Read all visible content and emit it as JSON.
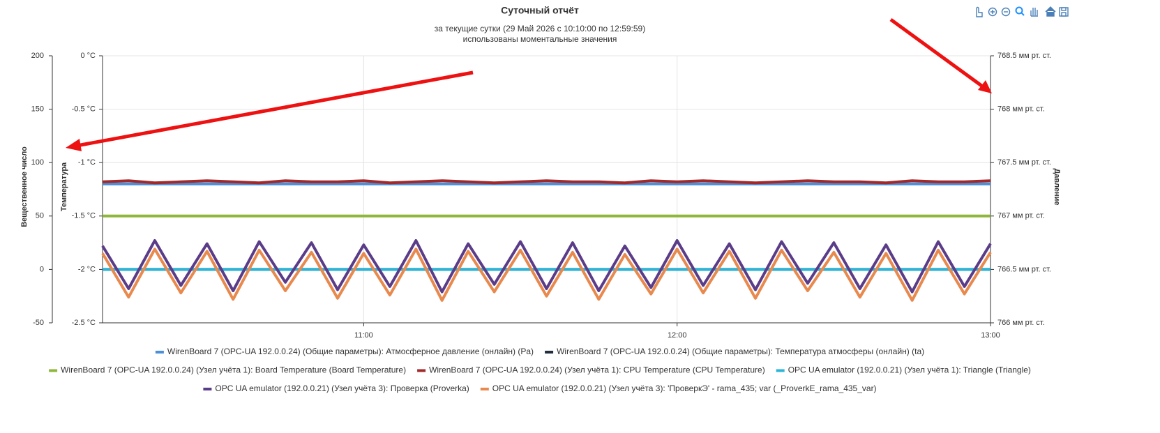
{
  "chart_data": {
    "type": "line",
    "title": "Суточный отчёт",
    "subtitle": [
      "за текущие сутки (29 Май 2026 с 10:10:00 по 12:59:59)",
      "использованы моментальные значения"
    ],
    "y3_label": "Вещественное число",
    "y_label": "Температура",
    "y2_label": "Давление",
    "x": [
      "10:10",
      "10:15",
      "10:20",
      "10:25",
      "10:30",
      "10:35",
      "10:40",
      "10:45",
      "10:50",
      "10:55",
      "11:00",
      "11:05",
      "11:10",
      "11:15",
      "11:20",
      "11:25",
      "11:30",
      "11:35",
      "11:40",
      "11:45",
      "11:50",
      "11:55",
      "12:00",
      "12:05",
      "12:10",
      "12:15",
      "12:20",
      "12:25",
      "12:30",
      "12:35",
      "12:40",
      "12:45",
      "12:50",
      "12:55",
      "13:00"
    ],
    "xlim": [
      "10:10",
      "13:00"
    ],
    "xticks": [
      "11:00",
      "12:00",
      "13:00"
    ],
    "ylim": [
      -2.5,
      0
    ],
    "yticks": [
      {
        "value": 0,
        "label": "0 °C"
      },
      {
        "value": -0.5,
        "label": "-0.5 °C"
      },
      {
        "value": -1,
        "label": "-1 °C"
      },
      {
        "value": -1.5,
        "label": "-1.5 °C"
      },
      {
        "value": -2,
        "label": "-2 °C"
      },
      {
        "value": -2.5,
        "label": "-2.5 °C"
      }
    ],
    "y2lim": [
      766,
      768.5
    ],
    "y2ticks": [
      {
        "value": 768.5,
        "label": "768.5 мм рт. ст."
      },
      {
        "value": 768,
        "label": "768 мм рт. ст."
      },
      {
        "value": 767.5,
        "label": "767.5 мм рт. ст."
      },
      {
        "value": 767,
        "label": "767 мм рт. ст."
      },
      {
        "value": 766.5,
        "label": "766.5 мм рт. ст."
      },
      {
        "value": 766,
        "label": "766 мм рт. ст."
      }
    ],
    "y3lim": [
      -50,
      200
    ],
    "y3ticks": [
      200,
      150,
      100,
      50,
      0,
      -50
    ],
    "grid": true,
    "legend": "bottom",
    "series": [
      {
        "name": "WirenBoard 7 (OPC-UA 192.0.0.24) (Общие параметры): Атмосферное давление (онлайн) (Pa)",
        "color": "#4a8fd8",
        "axis": "y2",
        "values": [
          767.3,
          767.3,
          767.3,
          767.3,
          767.3,
          767.3,
          767.3,
          767.3,
          767.3,
          767.3,
          767.3,
          767.3,
          767.3,
          767.3,
          767.3,
          767.3,
          767.3,
          767.3,
          767.3,
          767.3,
          767.3,
          767.3,
          767.3,
          767.3,
          767.3,
          767.3,
          767.3,
          767.3,
          767.3,
          767.3,
          767.3,
          767.3,
          767.3,
          767.3,
          767.3
        ]
      },
      {
        "name": "WirenBoard 7 (OPC-UA 192.0.0.24) (Общие параметры): Температура атмосферы (онлайн) (ta)",
        "color": "#1f2d3d",
        "axis": "y3",
        "values": [
          0,
          0,
          0,
          0,
          0,
          0,
          0,
          0,
          0,
          0,
          0,
          0,
          0,
          0,
          0,
          0,
          0,
          0,
          0,
          0,
          0,
          0,
          0,
          0,
          0,
          0,
          0,
          0,
          0,
          0,
          0,
          0,
          0,
          0,
          0
        ]
      },
      {
        "name": "WirenBoard 7 (OPC-UA 192.0.0.24) (Узел учёта 1): Board Temperature (Board Temperature)",
        "color": "#8fb73c",
        "values": [
          -1.5,
          -1.5,
          -1.5,
          -1.5,
          -1.5,
          -1.5,
          -1.5,
          -1.5,
          -1.5,
          -1.5,
          -1.5,
          -1.5,
          -1.5,
          -1.5,
          -1.5,
          -1.5,
          -1.5,
          -1.5,
          -1.5,
          -1.5,
          -1.5,
          -1.5,
          -1.5,
          -1.5,
          -1.5,
          -1.5,
          -1.5,
          -1.5,
          -1.5,
          -1.5,
          -1.5,
          -1.5,
          -1.5,
          -1.5,
          -1.5
        ]
      },
      {
        "name": "WirenBoard 7 (OPC-UA 192.0.0.24) (Узел учёта 1): CPU Temperature (CPU Temperature)",
        "color": "#a3282a",
        "values": [
          -1.18,
          -1.17,
          -1.19,
          -1.18,
          -1.17,
          -1.18,
          -1.19,
          -1.17,
          -1.18,
          -1.18,
          -1.17,
          -1.19,
          -1.18,
          -1.17,
          -1.18,
          -1.19,
          -1.18,
          -1.17,
          -1.18,
          -1.18,
          -1.19,
          -1.17,
          -1.18,
          -1.17,
          -1.18,
          -1.19,
          -1.18,
          -1.17,
          -1.18,
          -1.18,
          -1.19,
          -1.17,
          -1.18,
          -1.18,
          -1.17
        ]
      },
      {
        "name": "OPC UA emulator (192.0.0.21) (Узел учёта 1): Triangle (Triangle)",
        "color": "#2bb5d8",
        "axis": "y3",
        "values": [
          0,
          0,
          0,
          0,
          0,
          0,
          0,
          0,
          0,
          0,
          0,
          0,
          0,
          0,
          0,
          0,
          0,
          0,
          0,
          0,
          0,
          0,
          0,
          0,
          0,
          0,
          0,
          0,
          0,
          0,
          0,
          0,
          0,
          0,
          0
        ]
      },
      {
        "name": "OPC UA emulator (192.0.0.21) (Узел учёта 3): Проверка (Proverka)",
        "color": "#5a3c88",
        "axis": "y3",
        "values": [
          22,
          -18,
          27,
          -15,
          24,
          -20,
          26,
          -12,
          25,
          -19,
          23,
          -16,
          27,
          -21,
          24,
          -14,
          26,
          -18,
          25,
          -20,
          22,
          -17,
          27,
          -15,
          24,
          -19,
          26,
          -13,
          25,
          -18,
          23,
          -21,
          26,
          -16,
          24
        ]
      },
      {
        "name": "OPC UA emulator (192.0.0.21) (Узел учёта 3): 'ПроверкЭ' - rama_435; var (_ProverkE_rama_435_var)",
        "color": "#e8894e",
        "axis": "y3",
        "values": [
          15,
          -26,
          19,
          -22,
          17,
          -28,
          18,
          -20,
          16,
          -27,
          15,
          -24,
          19,
          -29,
          17,
          -21,
          18,
          -25,
          16,
          -28,
          14,
          -23,
          19,
          -22,
          17,
          -27,
          18,
          -20,
          16,
          -26,
          15,
          -29,
          18,
          -23,
          16
        ]
      }
    ]
  }
}
